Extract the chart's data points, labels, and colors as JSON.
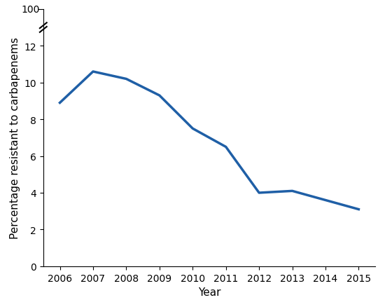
{
  "years": [
    2006,
    2007,
    2008,
    2009,
    2010,
    2011,
    2012,
    2013,
    2014,
    2015
  ],
  "values": [
    8.9,
    10.6,
    10.2,
    9.3,
    7.5,
    6.5,
    4.0,
    4.1,
    3.6,
    3.1
  ],
  "line_color": "#1f5fa6",
  "line_width": 2.5,
  "xlabel": "Year",
  "ylabel": "Percentage resistant to carbapenems",
  "ylim": [
    0,
    14
  ],
  "yticks": [
    0,
    2,
    4,
    6,
    8,
    10,
    12
  ],
  "ytick_labels": [
    "0",
    "2",
    "4",
    "6",
    "8",
    "10",
    "12"
  ],
  "xlim": [
    2005.5,
    2015.5
  ],
  "xticks": [
    2006,
    2007,
    2008,
    2009,
    2010,
    2011,
    2012,
    2013,
    2014,
    2015
  ],
  "y_100_label": "100",
  "background_color": "#ffffff",
  "axis_color": "#000000",
  "font_size": 11,
  "tick_font_size": 10
}
